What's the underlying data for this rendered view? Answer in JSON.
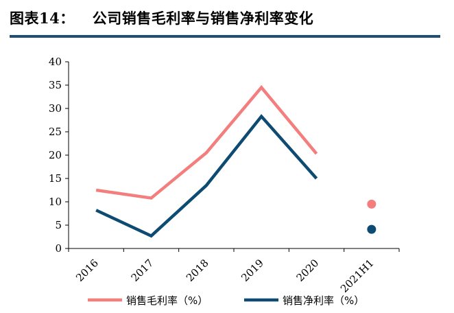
{
  "header": {
    "prefix": "图表14：",
    "title": "公司销售毛利率与销售净利率变化"
  },
  "chart_data": {
    "type": "line",
    "categories": [
      "2016",
      "2017",
      "2018",
      "2019",
      "2020",
      "2021H1"
    ],
    "ylim": [
      0,
      40
    ],
    "yticks": [
      0,
      5,
      10,
      15,
      20,
      25,
      30,
      35,
      40
    ],
    "grid": false,
    "legend_position": "bottom",
    "series": [
      {
        "name": "销售毛利率（%）",
        "color": "#f47d7e",
        "values": [
          12.5,
          10.8,
          20.5,
          34.5,
          20.3,
          9.5
        ]
      },
      {
        "name": "销售净利率（%）",
        "color": "#0d4b72",
        "values": [
          8.2,
          2.7,
          13.5,
          28.3,
          15.0,
          4.1
        ]
      }
    ]
  }
}
